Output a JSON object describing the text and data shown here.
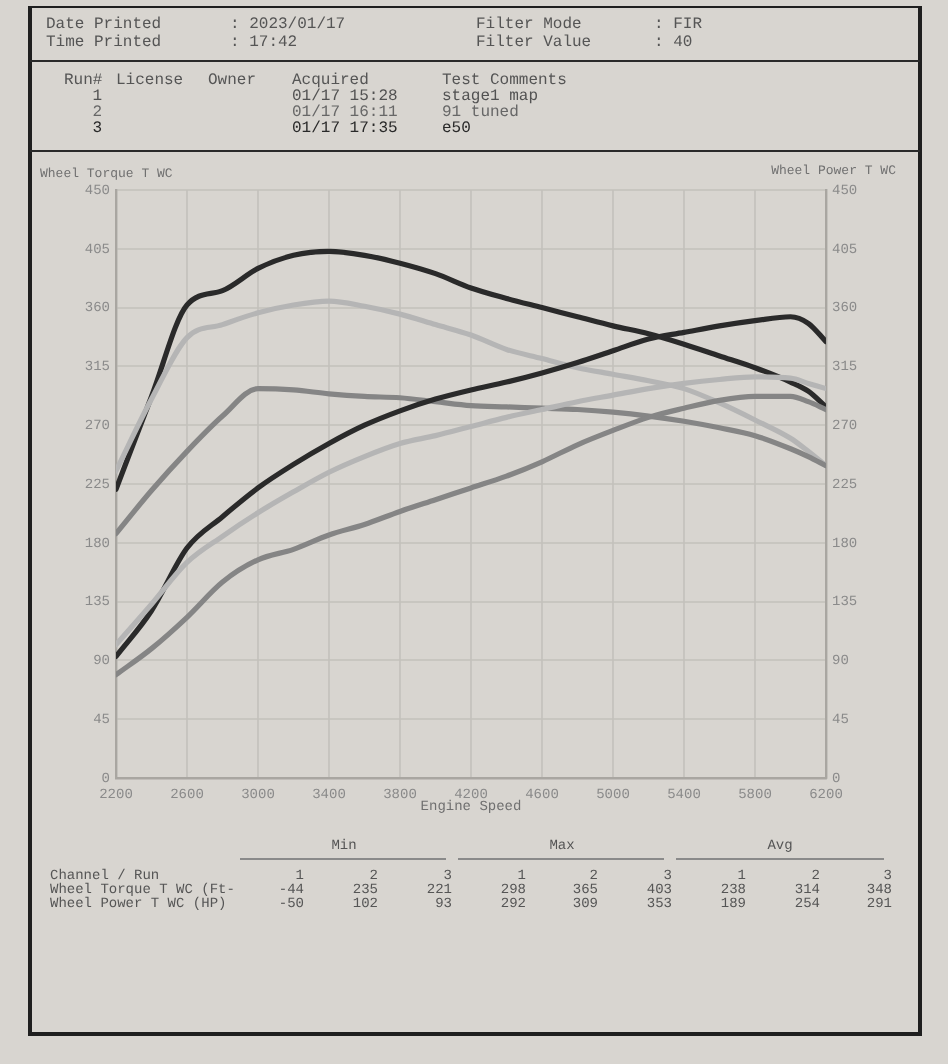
{
  "chart_data": {
    "type": "line",
    "xlabel": "Engine Speed",
    "ylabel": "Wheel Torque T WC",
    "y2label": "Wheel Power T WC",
    "x": [
      2200,
      2400,
      2600,
      2800,
      3000,
      3200,
      3400,
      3600,
      3800,
      4000,
      4200,
      4400,
      4600,
      4800,
      5000,
      5200,
      5400,
      5600,
      5800,
      6000,
      6100,
      6200
    ],
    "xlim": [
      2200,
      6200
    ],
    "xticks": [
      2200,
      2600,
      3000,
      3400,
      3800,
      4200,
      4600,
      5000,
      5400,
      5800,
      6200
    ],
    "ylim": [
      0,
      450
    ],
    "yticks": [
      0,
      45,
      90,
      135,
      180,
      225,
      270,
      315,
      360,
      405,
      450
    ],
    "y2lim": [
      0,
      450
    ],
    "y2ticks": [
      0,
      45,
      90,
      135,
      180,
      225,
      270,
      315,
      360,
      405,
      450
    ],
    "grid": true,
    "series": [
      {
        "color": "#858585",
        "values": [
          187,
          220,
          250,
          277,
          298,
          297,
          294,
          292,
          291,
          288,
          285,
          284,
          283,
          282,
          280,
          277,
          273,
          268,
          262,
          252,
          246,
          239
        ]
      },
      {
        "color": "#b5b5b5",
        "values": [
          235,
          290,
          337,
          347,
          356,
          362,
          365,
          361,
          355,
          347,
          339,
          328,
          321,
          314,
          309,
          304,
          298,
          287,
          274,
          260,
          250,
          239
        ]
      },
      {
        "color": "#2a2a2a",
        "values": [
          221,
          292,
          362,
          373,
          390,
          400,
          403,
          400,
          394,
          386,
          375,
          367,
          360,
          353,
          346,
          340,
          332,
          323,
          314,
          303,
          296,
          284
        ]
      },
      {
        "color": "#858585",
        "axis": "y2",
        "values": [
          79,
          99,
          123,
          150,
          167,
          175,
          186,
          194,
          204,
          213,
          222,
          231,
          242,
          255,
          266,
          276,
          283,
          289,
          292,
          292,
          288,
          282
        ]
      },
      {
        "color": "#b5b5b5",
        "axis": "y2",
        "values": [
          102,
          133,
          165,
          185,
          203,
          219,
          234,
          246,
          256,
          262,
          269,
          276,
          282,
          288,
          293,
          298,
          302,
          305,
          307,
          306,
          302,
          298
        ]
      },
      {
        "color": "#2a2a2a",
        "axis": "y2",
        "values": [
          93,
          128,
          176,
          200,
          222,
          240,
          256,
          270,
          281,
          290,
          297,
          303,
          310,
          318,
          327,
          336,
          341,
          346,
          350,
          353,
          348,
          334
        ]
      }
    ],
    "annotations": [
      "Date Printed",
      ": 2023/01/17",
      "Time Printed",
      ": 17:42",
      "Filter Mode",
      ": FIR",
      "Filter Value",
      ": 40",
      "Run#",
      "License",
      "Owner",
      "Acquired",
      "Test Comments",
      "1",
      "01/17 15:28",
      "stage1 map",
      "2",
      "01/17 16:11",
      "91 tuned",
      "3",
      "01/17 17:35",
      "e50",
      "Min",
      "Max",
      "Avg",
      "Channel / Run",
      "1",
      "2",
      "3",
      "1",
      "2",
      "3",
      "1",
      "2",
      "3",
      "Wheel Torque T WC (Ft-",
      "-44",
      "235",
      "221",
      "298",
      "365",
      "403",
      "238",
      "314",
      "348",
      "Wheel Power T WC (HP)",
      "-50",
      "102",
      "93",
      "292",
      "309",
      "353",
      "189",
      "254",
      "291"
    ]
  }
}
